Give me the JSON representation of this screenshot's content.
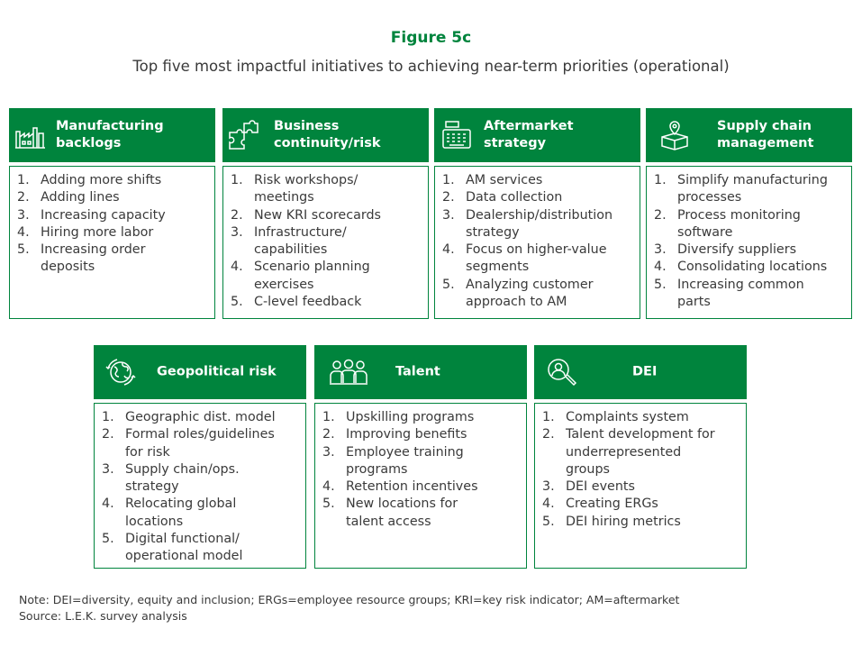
{
  "figure_title": "Figure 5c",
  "subtitle": "Top five most impactful initiatives to achieving near-term priorities (operational)",
  "brand_color": "#00843d",
  "cards": [
    {
      "title_lines": [
        "Manufacturing",
        "backlogs"
      ],
      "icon": "factory-icon",
      "items": [
        {
          "num": "1.",
          "lines": [
            "Adding more shifts"
          ]
        },
        {
          "num": "2.",
          "lines": [
            "Adding lines"
          ]
        },
        {
          "num": "3.",
          "lines": [
            "Increasing capacity"
          ]
        },
        {
          "num": "4.",
          "lines": [
            "Hiring more labor"
          ]
        },
        {
          "num": "5.",
          "lines": [
            "Increasing order",
            "deposits"
          ]
        }
      ]
    },
    {
      "title_lines": [
        "Business",
        "continuity/risk"
      ],
      "icon": "puzzle-icon",
      "items": [
        {
          "num": "1.",
          "lines": [
            "Risk workshops/",
            "meetings"
          ]
        },
        {
          "num": "2.",
          "lines": [
            "New KRI scorecards"
          ]
        },
        {
          "num": "3.",
          "lines": [
            "Infrastructure/",
            "capabilities"
          ]
        },
        {
          "num": "4.",
          "lines": [
            "Scenario planning",
            "exercises"
          ]
        },
        {
          "num": "5.",
          "lines": [
            "C-level feedback"
          ]
        }
      ]
    },
    {
      "title_lines": [
        "Aftermarket",
        "strategy"
      ],
      "icon": "cash-register-icon",
      "items": [
        {
          "num": "1.",
          "lines": [
            "AM services"
          ]
        },
        {
          "num": "2.",
          "lines": [
            "Data collection"
          ]
        },
        {
          "num": "3.",
          "lines": [
            "Dealership/distribution",
            "strategy"
          ]
        },
        {
          "num": "4.",
          "lines": [
            "Focus on higher-value",
            "segments"
          ]
        },
        {
          "num": "5.",
          "lines": [
            "Analyzing customer",
            "approach to AM"
          ]
        }
      ]
    },
    {
      "title_lines": [
        "Supply chain",
        "management"
      ],
      "icon": "package-location-icon",
      "items": [
        {
          "num": "1.",
          "lines": [
            "Simplify manufacturing",
            "processes"
          ]
        },
        {
          "num": "2.",
          "lines": [
            "Process monitoring",
            "software"
          ]
        },
        {
          "num": "3.",
          "lines": [
            "Diversify suppliers"
          ]
        },
        {
          "num": "4.",
          "lines": [
            "Consolidating locations"
          ]
        },
        {
          "num": "5.",
          "lines": [
            "Increasing common",
            "parts"
          ]
        }
      ]
    },
    {
      "title_lines": [
        "Geopolitical risk"
      ],
      "icon": "globe-arrows-icon",
      "items": [
        {
          "num": "1.",
          "lines": [
            "Geographic dist. model"
          ]
        },
        {
          "num": "2.",
          "lines": [
            "Formal roles/guidelines",
            "for risk"
          ]
        },
        {
          "num": "3.",
          "lines": [
            "Supply chain/ops.",
            "strategy"
          ]
        },
        {
          "num": "4.",
          "lines": [
            "Relocating global",
            "locations"
          ]
        },
        {
          "num": "5.",
          "lines": [
            "Digital functional/",
            "operational model"
          ]
        }
      ]
    },
    {
      "title_lines": [
        "Talent"
      ],
      "icon": "people-group-icon",
      "items": [
        {
          "num": "1.",
          "lines": [
            "Upskilling programs"
          ]
        },
        {
          "num": "2.",
          "lines": [
            "Improving benefits"
          ]
        },
        {
          "num": "3.",
          "lines": [
            "Employee training",
            "programs"
          ]
        },
        {
          "num": "4.",
          "lines": [
            "Retention incentives"
          ]
        },
        {
          "num": "5.",
          "lines": [
            "New locations for",
            "talent access"
          ]
        }
      ]
    },
    {
      "title_lines": [
        "DEI"
      ],
      "icon": "magnifier-person-icon",
      "items": [
        {
          "num": "1.",
          "lines": [
            "Complaints system"
          ]
        },
        {
          "num": "2.",
          "lines": [
            "Talent development for",
            "underrepresented",
            "groups"
          ]
        },
        {
          "num": "3.",
          "lines": [
            "DEI events"
          ]
        },
        {
          "num": "4.",
          "lines": [
            "Creating ERGs"
          ]
        },
        {
          "num": "5.",
          "lines": [
            "DEI hiring metrics"
          ]
        }
      ]
    }
  ],
  "note": "Note: DEI=diversity, equity and inclusion; ERGs=employee resource groups; KRI=key risk indicator; AM=aftermarket",
  "source": "Source: L.E.K. survey analysis"
}
